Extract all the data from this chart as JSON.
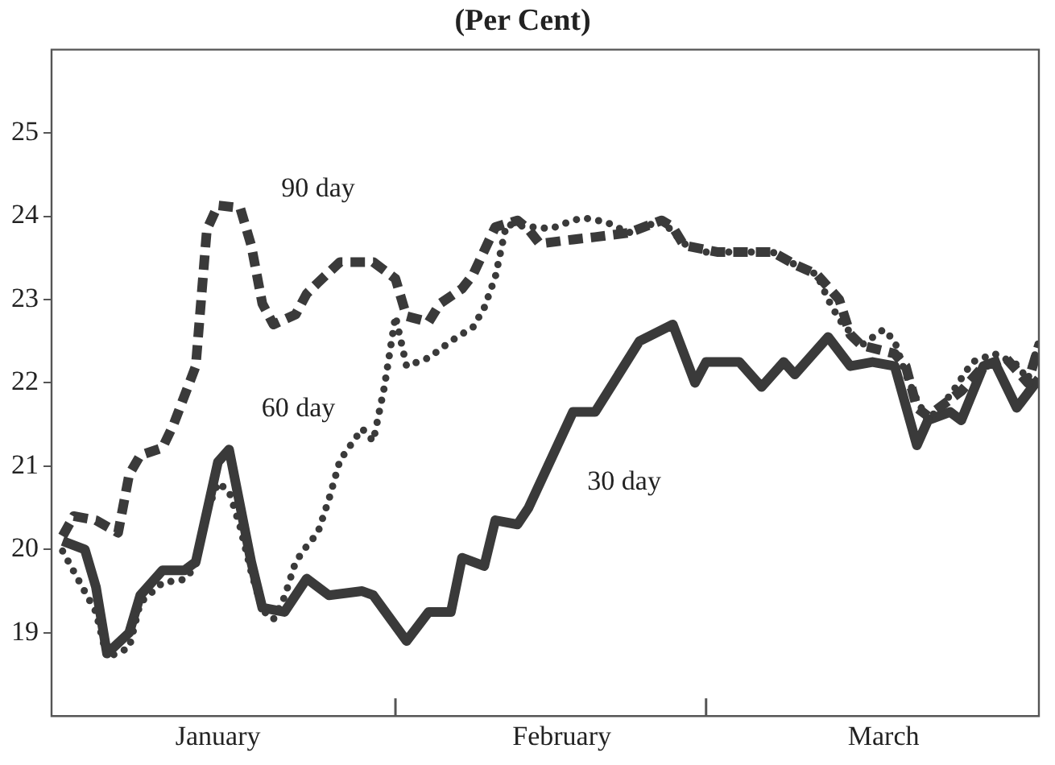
{
  "chart_data": {
    "type": "line",
    "title": "(Per Cent)",
    "xlim": [
      "--01-01",
      "--03-31"
    ],
    "xticks": [
      {
        "value": "--01-16",
        "label": "January"
      },
      {
        "value": "--02-01",
        "label": null
      },
      {
        "value": "--02-16",
        "label": "February"
      },
      {
        "value": "--03-01",
        "label": null
      },
      {
        "value": "--03-17",
        "label": "March"
      }
    ],
    "ylim": [
      18,
      26
    ],
    "yticks": [
      19,
      20,
      21,
      22,
      23,
      24,
      25
    ],
    "grid": false,
    "legend": false,
    "marker": "none",
    "series": [
      {
        "name": "90 day",
        "color": "#3a3a3a",
        "line_style": "dashed",
        "x": [
          "--01-02",
          "--01-03",
          "--01-05",
          "--01-07",
          "--01-08",
          "--01-09",
          "--01-11",
          "--01-12",
          "--01-14",
          "--01-15",
          "--01-16",
          "--01-18",
          "--01-19",
          "--01-20",
          "--01-21",
          "--01-23",
          "--01-24",
          "--01-25",
          "--01-27",
          "--01-30",
          "--02-01",
          "--02-02",
          "--02-04",
          "--02-05",
          "--02-07",
          "--02-08",
          "--02-10",
          "--02-12",
          "--02-13",
          "--02-14",
          "--02-17",
          "--02-19",
          "--02-22",
          "--02-25",
          "--02-26",
          "--02-27",
          "--03-02",
          "--03-04",
          "--03-07",
          "--03-09",
          "--03-11",
          "--03-13",
          "--03-14",
          "--03-15",
          "--03-18",
          "--03-19",
          "--03-20",
          "--03-21",
          "--03-24",
          "--03-26",
          "--03-28",
          "--03-29",
          "--03-30",
          "--03-31"
        ],
        "values": [
          20.16,
          20.4,
          20.35,
          20.2,
          20.9,
          21.13,
          21.22,
          21.5,
          22.2,
          23.84,
          24.13,
          24.1,
          23.65,
          22.95,
          22.7,
          22.82,
          23.07,
          23.2,
          23.45,
          23.45,
          23.25,
          22.8,
          22.73,
          22.95,
          23.13,
          23.3,
          23.87,
          23.95,
          23.84,
          23.67,
          23.72,
          23.75,
          23.8,
          23.95,
          23.87,
          23.65,
          23.57,
          23.57,
          23.57,
          23.42,
          23.3,
          23.0,
          22.58,
          22.45,
          22.35,
          22.2,
          21.7,
          21.6,
          21.9,
          22.2,
          22.3,
          22.15,
          22.0,
          22.45
        ]
      },
      {
        "name": "60 day",
        "color": "#3a3a3a",
        "line_style": "dotted",
        "x": [
          "--01-02",
          "--01-05",
          "--01-06",
          "--01-08",
          "--01-09",
          "--01-11",
          "--01-13",
          "--01-14",
          "--01-15",
          "--01-16",
          "--01-17",
          "--01-18",
          "--01-19",
          "--01-20",
          "--01-21",
          "--01-22",
          "--01-23",
          "--01-24",
          "--01-25",
          "--01-26",
          "--01-27",
          "--01-29",
          "--01-30",
          "--01-31",
          "--02-01",
          "--02-02",
          "--02-04",
          "--02-06",
          "--02-08",
          "--02-09",
          "--02-10",
          "--02-11",
          "--02-15",
          "--02-17",
          "--02-18",
          "--02-20",
          "--02-22",
          "--02-25",
          "--02-27",
          "--03-01",
          "--03-04",
          "--03-07",
          "--03-09",
          "--03-11",
          "--03-12",
          "--03-13",
          "--03-15",
          "--03-17",
          "--03-18",
          "--03-19",
          "--03-20",
          "--03-21",
          "--03-23",
          "--03-25",
          "--03-27",
          "--03-29",
          "--03-30",
          "--03-31"
        ],
        "values": [
          19.98,
          19.25,
          18.7,
          18.82,
          19.36,
          19.6,
          19.64,
          19.8,
          20.45,
          20.8,
          20.7,
          20.27,
          19.73,
          19.27,
          19.16,
          19.43,
          19.85,
          20.04,
          20.2,
          20.6,
          21.07,
          21.45,
          21.3,
          21.95,
          22.8,
          22.2,
          22.3,
          22.5,
          22.67,
          22.9,
          23.27,
          23.9,
          23.85,
          23.95,
          23.98,
          23.93,
          23.8,
          23.95,
          23.67,
          23.57,
          23.57,
          23.57,
          23.42,
          23.3,
          23.0,
          22.76,
          22.45,
          22.64,
          22.5,
          22.1,
          21.8,
          21.55,
          21.85,
          22.25,
          22.35,
          22.22,
          22.04,
          22.5
        ]
      },
      {
        "name": "30 day",
        "color": "#3a3a3a",
        "line_style": "solid",
        "x": [
          "--01-02",
          "--01-04",
          "--01-05",
          "--01-06",
          "--01-08",
          "--01-09",
          "--01-11",
          "--01-13",
          "--01-14",
          "--01-16",
          "--01-17",
          "--01-19",
          "--01-20",
          "--01-22",
          "--01-24",
          "--01-26",
          "--01-29",
          "--01-30",
          "--02-02",
          "--02-04",
          "--02-06",
          "--02-07",
          "--02-09",
          "--02-10",
          "--02-12",
          "--02-13",
          "--02-17",
          "--02-19",
          "--02-23",
          "--02-26",
          "--02-28",
          "--03-01",
          "--03-04",
          "--03-06",
          "--03-08",
          "--03-09",
          "--03-12",
          "--03-14",
          "--03-16",
          "--03-18",
          "--03-20",
          "--03-21",
          "--03-23",
          "--03-24",
          "--03-26",
          "--03-27",
          "--03-29",
          "--03-31"
        ],
        "values": [
          20.1,
          20.0,
          19.55,
          18.75,
          19.0,
          19.45,
          19.75,
          19.75,
          19.85,
          21.05,
          21.2,
          19.85,
          19.3,
          19.25,
          19.65,
          19.45,
          19.5,
          19.45,
          18.9,
          19.25,
          19.25,
          19.9,
          19.8,
          20.35,
          20.3,
          20.5,
          21.65,
          21.65,
          22.5,
          22.7,
          22.0,
          22.25,
          22.25,
          21.95,
          22.25,
          22.1,
          22.55,
          22.2,
          22.25,
          22.2,
          21.25,
          21.55,
          21.65,
          21.55,
          22.2,
          22.25,
          21.7,
          22.05
        ]
      }
    ]
  }
}
